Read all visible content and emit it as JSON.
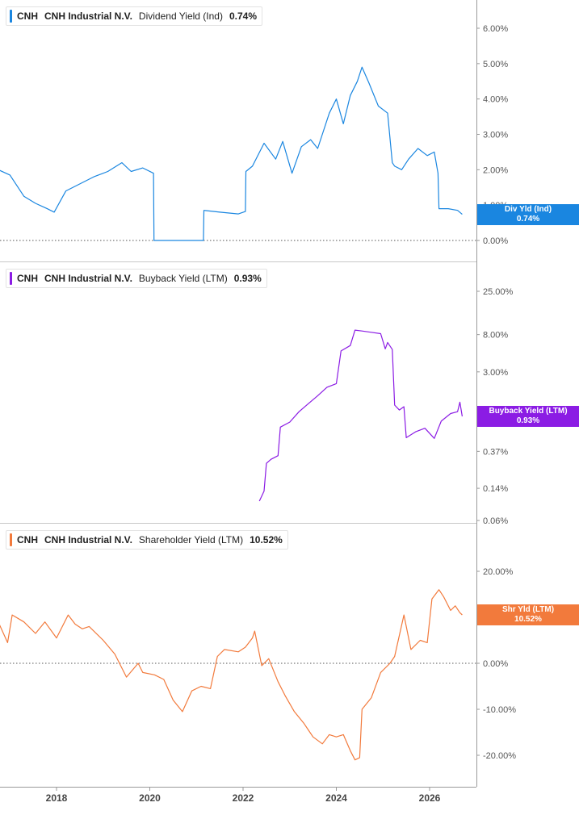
{
  "chart_data": [
    {
      "type": "line",
      "ticker": "CNH",
      "company": "CNH Industrial N.V.",
      "metric": "Dividend Yield (Ind)",
      "current_value": "0.74%",
      "tag_label": "Div Yld (Ind)",
      "color": "#1a86e0",
      "scale": "linear",
      "ylim": [
        0,
        6
      ],
      "yticks": [
        0,
        1,
        2,
        3,
        4,
        5,
        6
      ],
      "ytick_labels": [
        "0.00%",
        "1.00%",
        "2.00%",
        "3.00%",
        "4.00%",
        "5.00%",
        "6.00%"
      ],
      "zero_line": true,
      "x": [
        2016.75,
        2017.0,
        2017.3,
        2017.55,
        2017.8,
        2017.95,
        2018.2,
        2018.5,
        2018.8,
        2019.1,
        2019.4,
        2019.6,
        2019.85,
        2020.08,
        2020.09,
        2021.15,
        2021.16,
        2021.5,
        2021.9,
        2022.05,
        2022.06,
        2022.2,
        2022.45,
        2022.7,
        2022.85,
        2023.05,
        2023.25,
        2023.45,
        2023.6,
        2023.85,
        2024.0,
        2024.15,
        2024.3,
        2024.45,
        2024.55,
        2024.7,
        2024.9,
        2025.1,
        2025.2,
        2025.25,
        2025.4,
        2025.55,
        2025.75,
        2025.95,
        2026.1,
        2026.18,
        2026.2,
        2026.4,
        2026.6,
        2026.7
      ],
      "y": [
        2.0,
        1.85,
        1.25,
        1.05,
        0.9,
        0.8,
        1.4,
        1.6,
        1.8,
        1.95,
        2.2,
        1.95,
        2.05,
        1.9,
        0.0,
        0.0,
        0.85,
        0.8,
        0.75,
        0.82,
        1.95,
        2.1,
        2.75,
        2.3,
        2.8,
        1.9,
        2.65,
        2.85,
        2.6,
        3.6,
        4.0,
        3.3,
        4.1,
        4.5,
        4.9,
        4.45,
        3.8,
        3.6,
        2.2,
        2.1,
        2.0,
        2.3,
        2.6,
        2.4,
        2.5,
        1.9,
        0.9,
        0.9,
        0.85,
        0.74
      ]
    },
    {
      "type": "line",
      "ticker": "CNH",
      "company": "CNH Industrial N.V.",
      "metric": "Buyback Yield (LTM)",
      "current_value": "0.93%",
      "tag_label": "Buyback Yield (LTM)",
      "color": "#8b1ce4",
      "scale": "log",
      "ylim": [
        0.06,
        25
      ],
      "yticks": [
        0.06,
        0.14,
        0.37,
        3,
        8,
        25
      ],
      "ytick_labels": [
        "0.06%",
        "0.14%",
        "0.37%",
        "3.00%",
        "8.00%",
        "25.00%"
      ],
      "zero_line": false,
      "x": [
        2022.35,
        2022.45,
        2022.5,
        2022.6,
        2022.75,
        2022.8,
        2023.0,
        2023.2,
        2023.4,
        2023.6,
        2023.8,
        2024.0,
        2024.1,
        2024.3,
        2024.4,
        2024.55,
        2024.75,
        2024.95,
        2025.05,
        2025.1,
        2025.2,
        2025.25,
        2025.35,
        2025.45,
        2025.5,
        2025.7,
        2025.9,
        2026.1,
        2026.25,
        2026.45,
        2026.6,
        2026.65,
        2026.7
      ],
      "y": [
        0.1,
        0.13,
        0.27,
        0.3,
        0.33,
        0.7,
        0.8,
        1.05,
        1.3,
        1.6,
        2.0,
        2.2,
        5.2,
        6.0,
        9.0,
        8.8,
        8.5,
        8.2,
        5.5,
        6.5,
        5.4,
        1.25,
        1.1,
        1.2,
        0.53,
        0.62,
        0.68,
        0.52,
        0.82,
        1.0,
        1.05,
        1.35,
        0.93
      ]
    },
    {
      "type": "line",
      "ticker": "CNH",
      "company": "CNH Industrial N.V.",
      "metric": "Shareholder Yield (LTM)",
      "current_value": "10.52%",
      "tag_label": "Shr Yld (LTM)",
      "color": "#f27a3c",
      "scale": "linear",
      "ylim": [
        -25,
        25
      ],
      "yticks": [
        -20,
        -10,
        0,
        10,
        20
      ],
      "ytick_labels": [
        "-20.00%",
        "-10.00%",
        "0.00%",
        "10.00%",
        "20.00%"
      ],
      "zero_line": true,
      "x": [
        2016.75,
        2016.95,
        2017.05,
        2017.3,
        2017.55,
        2017.75,
        2018.0,
        2018.25,
        2018.4,
        2018.55,
        2018.7,
        2019.0,
        2019.25,
        2019.5,
        2019.75,
        2019.85,
        2020.1,
        2020.3,
        2020.5,
        2020.7,
        2020.9,
        2021.1,
        2021.3,
        2021.45,
        2021.6,
        2021.9,
        2022.05,
        2022.2,
        2022.25,
        2022.4,
        2022.55,
        2022.75,
        2022.9,
        2023.1,
        2023.3,
        2023.5,
        2023.7,
        2023.85,
        2024.0,
        2024.15,
        2024.3,
        2024.4,
        2024.5,
        2024.55,
        2024.75,
        2024.95,
        2025.15,
        2025.25,
        2025.45,
        2025.6,
        2025.8,
        2025.95,
        2026.05,
        2026.2,
        2026.3,
        2026.45,
        2026.55,
        2026.65,
        2026.7
      ],
      "y": [
        9.0,
        4.5,
        10.5,
        9.0,
        6.5,
        9.0,
        5.5,
        10.5,
        8.5,
        7.5,
        8.0,
        5.0,
        2.0,
        -3.0,
        0.0,
        -2.0,
        -2.5,
        -3.5,
        -8.0,
        -10.5,
        -6.0,
        -5.0,
        -5.5,
        1.5,
        3.0,
        2.5,
        3.5,
        5.5,
        7.0,
        -0.5,
        1.0,
        -4.0,
        -7.0,
        -10.5,
        -13.0,
        -16.0,
        -17.5,
        -15.5,
        -16.0,
        -15.5,
        -19.0,
        -21.0,
        -20.5,
        -10.0,
        -7.5,
        -2.0,
        0.0,
        1.5,
        10.5,
        3.0,
        5.0,
        4.5,
        14.0,
        16.0,
        14.5,
        11.5,
        12.5,
        11.0,
        10.52
      ]
    }
  ],
  "x_axis": {
    "ticks": [
      2018,
      2020,
      2022,
      2024,
      2026
    ],
    "tick_labels": [
      "2018",
      "2020",
      "2022",
      "2024",
      "2026"
    ]
  }
}
